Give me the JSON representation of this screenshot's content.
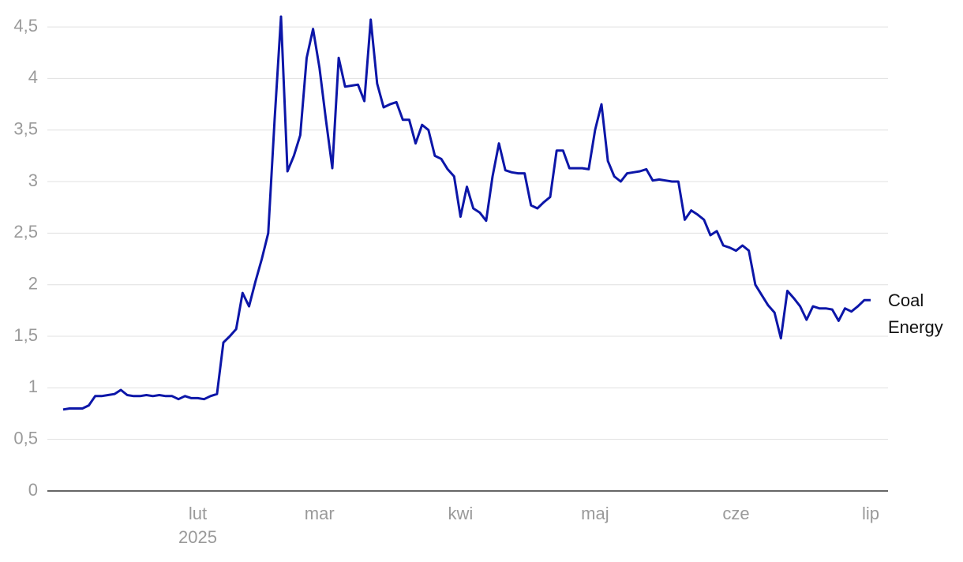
{
  "chart_data": {
    "type": "line",
    "categories": [
      null,
      null,
      null,
      null,
      null,
      null,
      null,
      null,
      null,
      null,
      null,
      null,
      null,
      null,
      null,
      null,
      null,
      null,
      null,
      null,
      null,
      "lut\n2025",
      null,
      null,
      null,
      null,
      null,
      null,
      null,
      null,
      null,
      null,
      null,
      null,
      null,
      null,
      null,
      null,
      null,
      null,
      "mar",
      null,
      null,
      null,
      null,
      null,
      null,
      null,
      null,
      null,
      null,
      null,
      null,
      null,
      null,
      null,
      null,
      null,
      null,
      null,
      null,
      null,
      "kwi",
      null,
      null,
      null,
      null,
      null,
      null,
      null,
      null,
      null,
      null,
      null,
      null,
      null,
      null,
      null,
      null,
      null,
      null,
      null,
      null,
      "maj",
      null,
      null,
      null,
      null,
      null,
      null,
      null,
      null,
      null,
      null,
      null,
      null,
      null,
      null,
      null,
      null,
      null,
      null,
      null,
      null,
      null,
      "cze",
      null,
      null,
      null,
      null,
      null,
      null,
      null,
      null,
      null,
      null,
      null,
      null,
      null,
      null,
      null,
      null,
      null,
      null,
      null,
      null,
      "lip"
    ],
    "series": [
      {
        "name": "Coal\nEnergy",
        "color": "#0c16a8",
        "values": [
          0.79,
          0.8,
          0.8,
          0.8,
          0.83,
          0.92,
          0.92,
          0.93,
          0.94,
          0.98,
          0.93,
          0.92,
          0.92,
          0.93,
          0.92,
          0.93,
          0.92,
          0.92,
          0.89,
          0.92,
          0.9,
          0.9,
          0.89,
          0.92,
          0.94,
          1.44,
          1.5,
          1.57,
          1.92,
          1.79,
          2.03,
          2.25,
          2.5,
          3.6,
          4.6,
          3.1,
          3.25,
          3.45,
          4.2,
          4.48,
          4.1,
          3.6,
          3.13,
          4.2,
          3.92,
          3.93,
          3.94,
          3.78,
          4.57,
          3.95,
          3.72,
          3.75,
          3.77,
          3.6,
          3.6,
          3.37,
          3.55,
          3.5,
          3.25,
          3.22,
          3.12,
          3.05,
          2.66,
          2.95,
          2.74,
          2.7,
          2.62,
          3.05,
          3.37,
          3.11,
          3.09,
          3.08,
          3.08,
          2.77,
          2.74,
          2.8,
          2.85,
          3.3,
          3.3,
          3.13,
          3.13,
          3.13,
          3.12,
          3.5,
          3.75,
          3.2,
          3.05,
          3.0,
          3.08,
          3.09,
          3.1,
          3.12,
          3.01,
          3.02,
          3.01,
          3.0,
          3.0,
          2.63,
          2.72,
          2.68,
          2.63,
          2.48,
          2.52,
          2.38,
          2.36,
          2.33,
          2.38,
          2.33,
          2.0,
          1.9,
          1.8,
          1.73,
          1.48,
          1.94,
          1.87,
          1.79,
          1.66,
          1.79,
          1.77,
          1.77,
          1.76,
          1.65,
          1.77,
          1.74,
          1.79,
          1.85,
          1.85
        ]
      }
    ],
    "ylim": [
      0,
      4.6
    ],
    "yticks": [
      0,
      {
        "value": 0.5,
        "label": "0,5"
      },
      1,
      {
        "value": 1.5,
        "label": "1,5"
      },
      2,
      {
        "value": 2.5,
        "label": "2,5"
      },
      3,
      {
        "value": 3.5,
        "label": "3,5"
      },
      4,
      {
        "value": 4.5,
        "label": "4,5"
      }
    ],
    "grid": true
  }
}
